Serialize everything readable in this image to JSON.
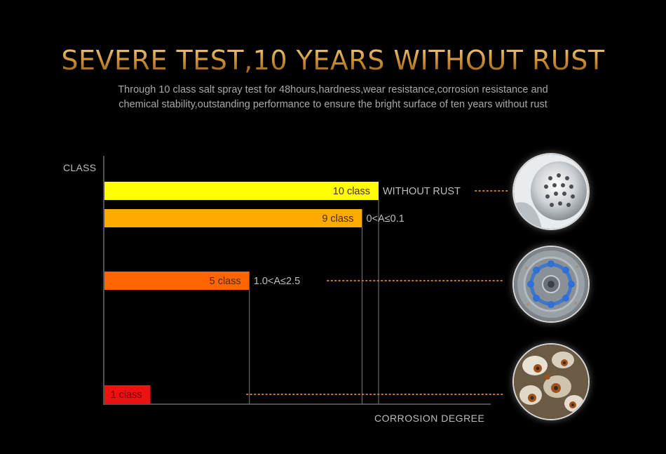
{
  "title": "SEVERE TEST,10 YEARS WITHOUT RUST",
  "subtitle_lines": [
    "Through 10 class salt spray test for 48hours,hardness,wear resistance,corrosion resistance and",
    "chemical stability,outstanding performance to ensure the bright surface of ten years without rust"
  ],
  "chart_data": {
    "type": "bar",
    "orientation": "horizontal",
    "ylabel": "CLASS",
    "xlabel": "CORROSION DEGREE",
    "xlim": [
      0,
      10
    ],
    "grid": false,
    "bars": [
      {
        "label": "10 class",
        "class": 10,
        "value": 10,
        "annotation": "WITHOUT RUST",
        "color": "#ffff00"
      },
      {
        "label": "9 class",
        "class": 9,
        "value": 9.4,
        "annotation": "0<A≤0.1",
        "color": "#ffaa00"
      },
      {
        "label": "5 class",
        "class": 5,
        "value": 5.3,
        "annotation": "1.0<A≤2.5",
        "color": "#ff6600"
      },
      {
        "label": "1 class",
        "class": 1,
        "value": 1.7,
        "annotation": "",
        "color": "#ee1111"
      }
    ]
  },
  "photos": [
    {
      "name": "chrome-shower-head",
      "depicts": "shiny chrome shower head"
    },
    {
      "name": "worn-shower-head",
      "depicts": "shower head with blue nozzles and slight corrosion"
    },
    {
      "name": "rusted-shower-head",
      "depicts": "heavily corroded shower head"
    }
  ],
  "colors": {
    "title_gold": "#d9a24a",
    "leader_dots": "#c47a2c",
    "axis": "#6a6a6a"
  }
}
